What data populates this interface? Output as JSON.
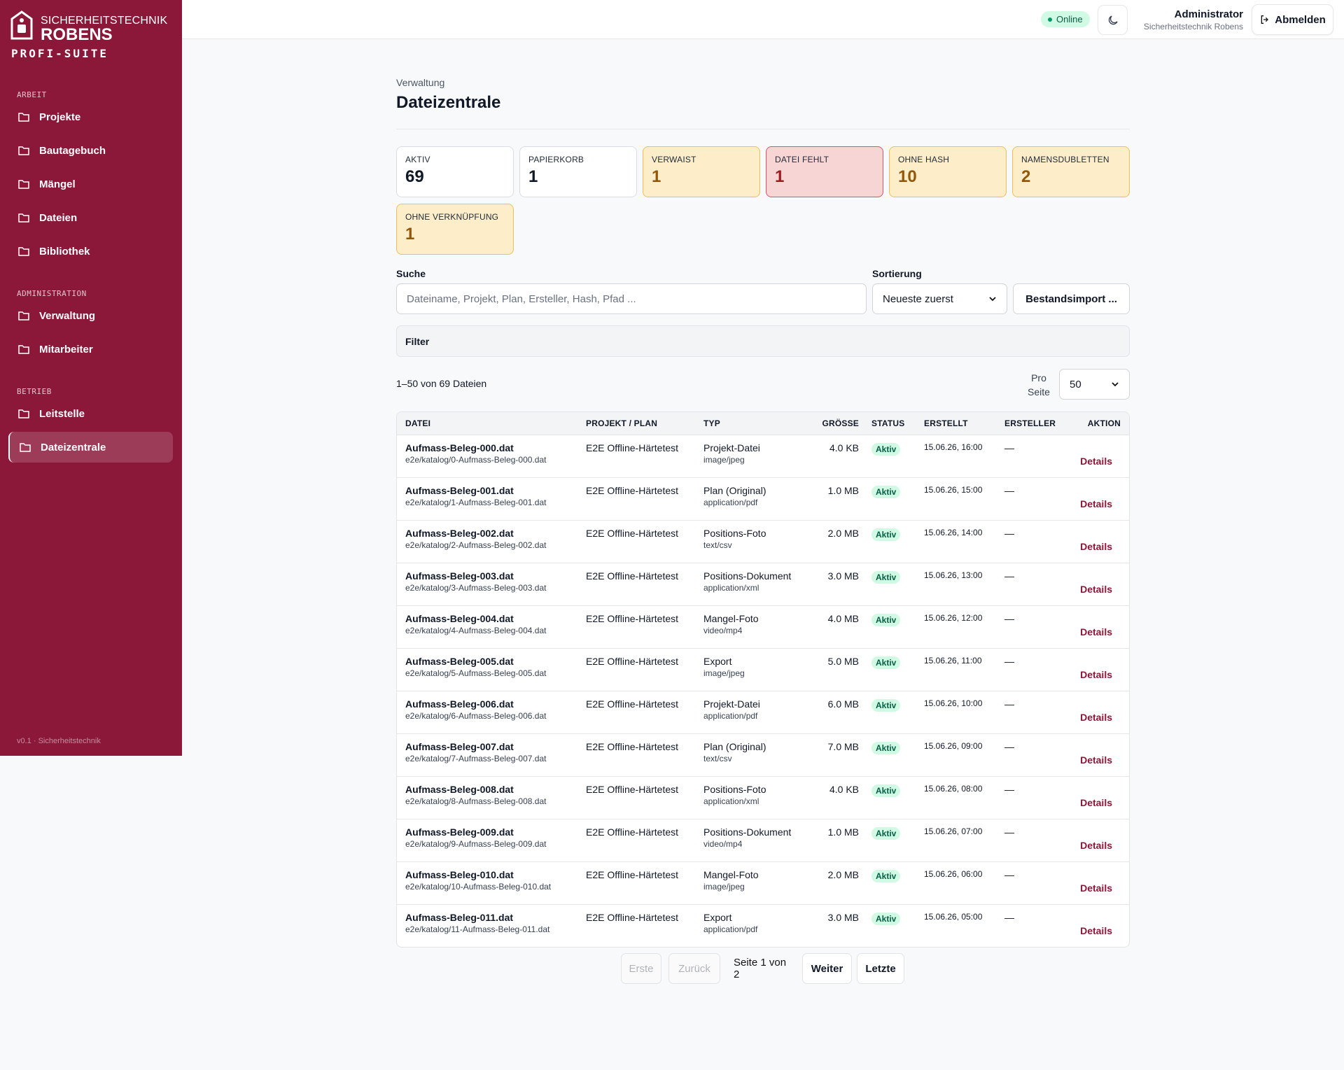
{
  "sidebar": {
    "brand": {
      "line1": "SICHERHEITSTECHNIK",
      "line2": "ROBENS",
      "line3": "PROFI-SUITE"
    },
    "sections": [
      {
        "label": "ARBEIT",
        "items": [
          "Projekte",
          "Bautagebuch",
          "Mängel",
          "Dateien",
          "Bibliothek"
        ]
      },
      {
        "label": "ADMINISTRATION",
        "items": [
          "Verwaltung",
          "Mitarbeiter"
        ]
      },
      {
        "label": "BETRIEB",
        "items": [
          "Leitstelle",
          "Dateizentrale"
        ]
      }
    ],
    "active": "Dateizentrale",
    "footer": "v0.1 · Sicherheitstechnik"
  },
  "topbar": {
    "status": "Online",
    "user": "Administrator",
    "company": "Sicherheitstechnik Robens",
    "logout": "Abmelden"
  },
  "header": {
    "breadcrumb": "Verwaltung",
    "title": "Dateizentrale"
  },
  "stats": [
    {
      "label": "AKTIV",
      "value": "69",
      "tone": "neutral"
    },
    {
      "label": "PAPIERKORB",
      "value": "1",
      "tone": "neutral"
    },
    {
      "label": "VERWAIST",
      "value": "1",
      "tone": "warning"
    },
    {
      "label": "DATEI FEHLT",
      "value": "1",
      "tone": "danger"
    },
    {
      "label": "OHNE HASH",
      "value": "10",
      "tone": "warning"
    },
    {
      "label": "NAMENSDUBLETTEN",
      "value": "2",
      "tone": "warning"
    },
    {
      "label": "OHNE VERKNÜPFUNG",
      "value": "1",
      "tone": "warning"
    }
  ],
  "search": {
    "label": "Suche",
    "placeholder": "Dateiname, Projekt, Plan, Ersteller, Hash, Pfad ...",
    "sort_label": "Sortierung",
    "sort_value": "Neueste zuerst",
    "import_button": "Bestandsimport ..."
  },
  "filter": "Filter",
  "summary": {
    "count": "1–50 von 69 Dateien",
    "per_page_label": "Pro Seite",
    "per_page_value": "50"
  },
  "table": {
    "columns": [
      "DATEI",
      "PROJEKT / PLAN",
      "TYP",
      "GRÖSSE",
      "STATUS",
      "ERSTELLT",
      "ERSTELLER",
      "AKTION"
    ],
    "rows": [
      {
        "file": "Aufmass-Beleg-000.dat",
        "path": "e2e/katalog/0-Aufmass-Beleg-000.dat",
        "project": "E2E Offline-Härtetest",
        "type": "Projekt-Datei",
        "mime": "image/jpeg",
        "size": "4.0 KB",
        "status": "Aktiv",
        "created": "15.06.26, 16:00",
        "creator": "—",
        "action": "Details"
      },
      {
        "file": "Aufmass-Beleg-001.dat",
        "path": "e2e/katalog/1-Aufmass-Beleg-001.dat",
        "project": "E2E Offline-Härtetest",
        "type": "Plan (Original)",
        "mime": "application/pdf",
        "size": "1.0 MB",
        "status": "Aktiv",
        "created": "15.06.26, 15:00",
        "creator": "—",
        "action": "Details"
      },
      {
        "file": "Aufmass-Beleg-002.dat",
        "path": "e2e/katalog/2-Aufmass-Beleg-002.dat",
        "project": "E2E Offline-Härtetest",
        "type": "Positions-Foto",
        "mime": "text/csv",
        "size": "2.0 MB",
        "status": "Aktiv",
        "created": "15.06.26, 14:00",
        "creator": "—",
        "action": "Details"
      },
      {
        "file": "Aufmass-Beleg-003.dat",
        "path": "e2e/katalog/3-Aufmass-Beleg-003.dat",
        "project": "E2E Offline-Härtetest",
        "type": "Positions-Dokument",
        "mime": "application/xml",
        "size": "3.0 MB",
        "status": "Aktiv",
        "created": "15.06.26, 13:00",
        "creator": "—",
        "action": "Details"
      },
      {
        "file": "Aufmass-Beleg-004.dat",
        "path": "e2e/katalog/4-Aufmass-Beleg-004.dat",
        "project": "E2E Offline-Härtetest",
        "type": "Mangel-Foto",
        "mime": "video/mp4",
        "size": "4.0 MB",
        "status": "Aktiv",
        "created": "15.06.26, 12:00",
        "creator": "—",
        "action": "Details"
      },
      {
        "file": "Aufmass-Beleg-005.dat",
        "path": "e2e/katalog/5-Aufmass-Beleg-005.dat",
        "project": "E2E Offline-Härtetest",
        "type": "Export",
        "mime": "image/jpeg",
        "size": "5.0 MB",
        "status": "Aktiv",
        "created": "15.06.26, 11:00",
        "creator": "—",
        "action": "Details"
      },
      {
        "file": "Aufmass-Beleg-006.dat",
        "path": "e2e/katalog/6-Aufmass-Beleg-006.dat",
        "project": "E2E Offline-Härtetest",
        "type": "Projekt-Datei",
        "mime": "application/pdf",
        "size": "6.0 MB",
        "status": "Aktiv",
        "created": "15.06.26, 10:00",
        "creator": "—",
        "action": "Details"
      },
      {
        "file": "Aufmass-Beleg-007.dat",
        "path": "e2e/katalog/7-Aufmass-Beleg-007.dat",
        "project": "E2E Offline-Härtetest",
        "type": "Plan (Original)",
        "mime": "text/csv",
        "size": "7.0 MB",
        "status": "Aktiv",
        "created": "15.06.26, 09:00",
        "creator": "—",
        "action": "Details"
      },
      {
        "file": "Aufmass-Beleg-008.dat",
        "path": "e2e/katalog/8-Aufmass-Beleg-008.dat",
        "project": "E2E Offline-Härtetest",
        "type": "Positions-Foto",
        "mime": "application/xml",
        "size": "4.0 KB",
        "status": "Aktiv",
        "created": "15.06.26, 08:00",
        "creator": "—",
        "action": "Details"
      },
      {
        "file": "Aufmass-Beleg-009.dat",
        "path": "e2e/katalog/9-Aufmass-Beleg-009.dat",
        "project": "E2E Offline-Härtetest",
        "type": "Positions-Dokument",
        "mime": "video/mp4",
        "size": "1.0 MB",
        "status": "Aktiv",
        "created": "15.06.26, 07:00",
        "creator": "—",
        "action": "Details"
      },
      {
        "file": "Aufmass-Beleg-010.dat",
        "path": "e2e/katalog/10-Aufmass-Beleg-010.dat",
        "project": "E2E Offline-Härtetest",
        "type": "Mangel-Foto",
        "mime": "image/jpeg",
        "size": "2.0 MB",
        "status": "Aktiv",
        "created": "15.06.26, 06:00",
        "creator": "—",
        "action": "Details"
      },
      {
        "file": "Aufmass-Beleg-011.dat",
        "path": "e2e/katalog/11-Aufmass-Beleg-011.dat",
        "project": "E2E Offline-Härtetest",
        "type": "Export",
        "mime": "application/pdf",
        "size": "3.0 MB",
        "status": "Aktiv",
        "created": "15.06.26, 05:00",
        "creator": "—",
        "action": "Details"
      }
    ]
  },
  "pagination": {
    "first": "Erste",
    "prev": "Zurück",
    "info": "Seite 1 von 2",
    "next": "Weiter",
    "last": "Letzte"
  }
}
